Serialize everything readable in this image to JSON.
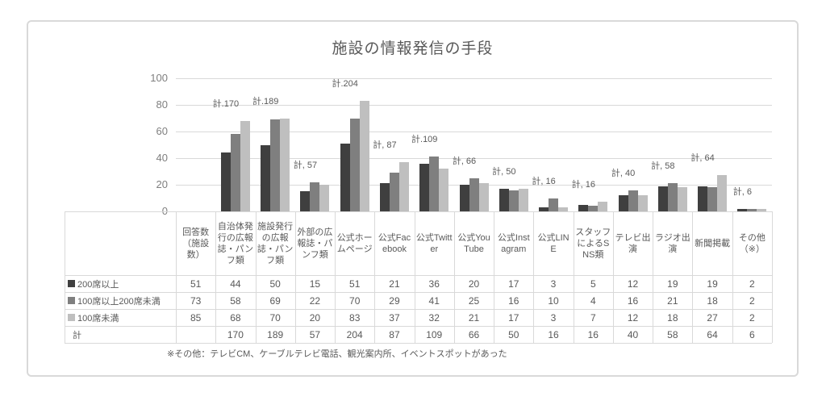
{
  "title": "施設の情報発信の手段",
  "footnote": "※その他：テレビCM、ケーブルテレビ電話、観光案内所、イベントスポットがあった",
  "colors": {
    "series_200_or_more": "#3f3f3f",
    "series_100_to_200": "#7f7f7f",
    "series_under_100": "#bfbfbf",
    "grid": "#d9d9d9",
    "text": "#595959",
    "axis_text": "#7f7f7f"
  },
  "chart_data": {
    "type": "bar",
    "title": "施設の情報発信の手段",
    "categories": [
      "回答数（施設数）",
      "自治体発行の広報誌・パンフ類",
      "施設発行の広報誌・パンフ類",
      "外部の広報誌・パンフ類",
      "公式ホームページ",
      "公式Facebook",
      "公式Twitter",
      "公式YouTube",
      "公式Instagram",
      "公式LINE",
      "スタッフによるSNS類",
      "テレビ出演",
      "ラジオ出演",
      "新聞掲載",
      "その他（※）"
    ],
    "series": [
      {
        "name": "200席以上",
        "color": "#3f3f3f",
        "values": [
          51,
          44,
          50,
          15,
          51,
          21,
          36,
          20,
          17,
          3,
          5,
          12,
          19,
          19,
          2
        ]
      },
      {
        "name": "100席以上200席未満",
        "color": "#7f7f7f",
        "values": [
          73,
          58,
          69,
          22,
          70,
          29,
          41,
          25,
          16,
          10,
          4,
          16,
          21,
          18,
          2
        ]
      },
      {
        "name": "100席未満",
        "color": "#bfbfbf",
        "values": [
          85,
          68,
          70,
          20,
          83,
          37,
          32,
          21,
          17,
          3,
          7,
          12,
          18,
          27,
          2
        ]
      }
    ],
    "totals": {
      "name": "計",
      "values": [
        null,
        170,
        189,
        57,
        204,
        87,
        109,
        66,
        50,
        16,
        16,
        40,
        58,
        64,
        6
      ],
      "labels": [
        "",
        "計.170",
        "計.189",
        "計, 57",
        "計.204",
        "計, 87",
        "計.109",
        "計, 66",
        "計, 50",
        "計, 16",
        "計, 16",
        "計, 40",
        "計, 58",
        "計, 64",
        "計, 6"
      ]
    },
    "y_ticks": [
      0,
      20,
      40,
      60,
      80,
      100
    ],
    "ylim": [
      0,
      100
    ],
    "grid": true,
    "legend_position": "table-row-headers",
    "first_category_has_no_bars": true,
    "data_table_shown_below_axis": true
  },
  "table": {
    "column_headers": [
      "回答数（施設数）",
      "自治体発行の広報誌・パンフ類",
      "施設発行の広報誌・パンフ類",
      "外部の広報誌・パンフ類",
      "公式ホームページ",
      "公式Facebook",
      "公式Twitter",
      "公式YouTube",
      "公式Instagram",
      "公式LINE",
      "スタッフによるSNS類",
      "テレビ出演",
      "ラジオ出演",
      "新聞掲載",
      "その他（※）"
    ],
    "rows": [
      {
        "label": "200席以上",
        "marker_color": "#3f3f3f",
        "values": [
          "51",
          "44",
          "50",
          "15",
          "51",
          "21",
          "36",
          "20",
          "17",
          "3",
          "5",
          "12",
          "19",
          "19",
          "2"
        ]
      },
      {
        "label": "100席以上200席未満",
        "marker_color": "#7f7f7f",
        "values": [
          "73",
          "58",
          "69",
          "22",
          "70",
          "29",
          "41",
          "25",
          "16",
          "10",
          "4",
          "16",
          "21",
          "18",
          "2"
        ]
      },
      {
        "label": "100席未満",
        "marker_color": "#bfbfbf",
        "values": [
          "85",
          "68",
          "70",
          "20",
          "83",
          "37",
          "32",
          "21",
          "17",
          "3",
          "7",
          "12",
          "18",
          "27",
          "2"
        ]
      },
      {
        "label": "計",
        "marker_color": null,
        "values": [
          "",
          "170",
          "189",
          "57",
          "204",
          "87",
          "109",
          "66",
          "50",
          "16",
          "16",
          "40",
          "58",
          "64",
          "6"
        ]
      }
    ]
  }
}
